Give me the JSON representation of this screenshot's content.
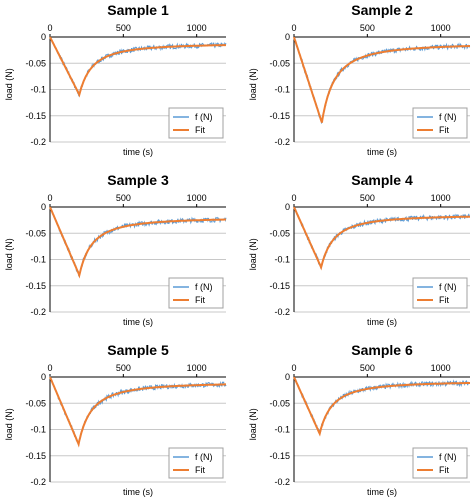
{
  "colors": {
    "measured": "#5b9bd5",
    "fit": "#ed7d31",
    "grid": "#c8c8c8",
    "axis": "#000000",
    "legend_border": "#a0a0a0"
  },
  "chart_data": [
    {
      "type": "line",
      "title": "Sample 1",
      "xlabel": "time (s)",
      "ylabel": "load (N)",
      "xlim": [
        0,
        1200
      ],
      "ylim": [
        -0.2,
        0
      ],
      "xticks": [
        "0",
        "500",
        "1000"
      ],
      "yticks": [
        "0",
        "-0.05",
        "-0.1",
        "-0.15",
        "-0.2"
      ],
      "grid": "horizontal",
      "legend": "bottom-right",
      "peak": {
        "x": 200,
        "y": -0.11
      },
      "end": {
        "x": 1200,
        "y": -0.012
      },
      "series": [
        {
          "name": "f (N)",
          "x": [
            0,
            50,
            100,
            150,
            200,
            300,
            400,
            600,
            800,
            1000,
            1200
          ],
          "y": [
            0,
            -0.03,
            -0.055,
            -0.08,
            -0.11,
            -0.055,
            -0.037,
            -0.025,
            -0.018,
            -0.014,
            -0.012
          ]
        },
        {
          "name": "Fit",
          "x": [
            0,
            50,
            100,
            150,
            200,
            300,
            400,
            600,
            800,
            1000,
            1200
          ],
          "y": [
            0,
            -0.028,
            -0.055,
            -0.083,
            -0.11,
            -0.055,
            -0.037,
            -0.025,
            -0.018,
            -0.014,
            -0.012
          ]
        }
      ]
    },
    {
      "type": "line",
      "title": "Sample 2",
      "xlabel": "time (s)",
      "ylabel": "load (N)",
      "xlim": [
        0,
        1200
      ],
      "ylim": [
        -0.2,
        0
      ],
      "xticks": [
        "0",
        "500",
        "1000"
      ],
      "yticks": [
        "0",
        "-0.05",
        "-0.1",
        "-0.15",
        "-0.2"
      ],
      "grid": "horizontal",
      "legend": "bottom-right",
      "peak": {
        "x": 190,
        "y": -0.163
      },
      "end": {
        "x": 1200,
        "y": -0.012
      },
      "series": [
        {
          "name": "f (N)",
          "x": [
            0,
            50,
            100,
            150,
            190,
            300,
            400,
            600,
            800,
            1000,
            1200
          ],
          "y": [
            0,
            -0.04,
            -0.08,
            -0.12,
            -0.163,
            -0.07,
            -0.045,
            -0.028,
            -0.02,
            -0.015,
            -0.012
          ]
        },
        {
          "name": "Fit",
          "x": [
            0,
            50,
            100,
            150,
            190,
            300,
            400,
            600,
            800,
            1000,
            1200
          ],
          "y": [
            0,
            -0.043,
            -0.086,
            -0.129,
            -0.163,
            -0.07,
            -0.045,
            -0.028,
            -0.02,
            -0.015,
            -0.012
          ]
        }
      ]
    },
    {
      "type": "line",
      "title": "Sample 3",
      "xlabel": "time (s)",
      "ylabel": "load (N)",
      "xlim": [
        0,
        1200
      ],
      "ylim": [
        -0.2,
        0
      ],
      "xticks": [
        "0",
        "500",
        "1000"
      ],
      "yticks": [
        "0",
        "-0.05",
        "-0.1",
        "-0.15",
        "-0.2"
      ],
      "grid": "horizontal",
      "legend": "bottom-right",
      "peak": {
        "x": 200,
        "y": -0.13
      },
      "end": {
        "x": 1200,
        "y": -0.02
      },
      "series": [
        {
          "name": "f (N)",
          "x": [
            0,
            50,
            100,
            150,
            200,
            300,
            400,
            600,
            800,
            1000,
            1200
          ],
          "y": [
            0,
            -0.035,
            -0.07,
            -0.1,
            -0.13,
            -0.065,
            -0.045,
            -0.033,
            -0.027,
            -0.023,
            -0.02
          ]
        },
        {
          "name": "Fit",
          "x": [
            0,
            50,
            100,
            150,
            200,
            300,
            400,
            600,
            800,
            1000,
            1200
          ],
          "y": [
            0,
            -0.033,
            -0.065,
            -0.098,
            -0.13,
            -0.065,
            -0.045,
            -0.033,
            -0.027,
            -0.023,
            -0.02
          ]
        }
      ]
    },
    {
      "type": "line",
      "title": "Sample 4",
      "xlabel": "time (s)",
      "ylabel": "load (N)",
      "xlim": [
        0,
        1200
      ],
      "ylim": [
        -0.2,
        0
      ],
      "xticks": [
        "0",
        "500",
        "1000"
      ],
      "yticks": [
        "0",
        "-0.05",
        "-0.1",
        "-0.15",
        "-0.2"
      ],
      "grid": "horizontal",
      "legend": "bottom-right",
      "peak": {
        "x": 185,
        "y": -0.115
      },
      "end": {
        "x": 1200,
        "y": -0.015
      },
      "series": [
        {
          "name": "f (N)",
          "x": [
            0,
            50,
            100,
            150,
            185,
            300,
            400,
            600,
            800,
            1000,
            1200
          ],
          "y": [
            0,
            -0.03,
            -0.06,
            -0.09,
            -0.115,
            -0.058,
            -0.042,
            -0.028,
            -0.021,
            -0.017,
            -0.015
          ]
        },
        {
          "name": "Fit",
          "x": [
            0,
            50,
            100,
            150,
            185,
            300,
            400,
            600,
            800,
            1000,
            1200
          ],
          "y": [
            0,
            -0.031,
            -0.062,
            -0.093,
            -0.115,
            -0.058,
            -0.042,
            -0.028,
            -0.021,
            -0.017,
            -0.015
          ]
        }
      ]
    },
    {
      "type": "line",
      "title": "Sample 5",
      "xlabel": "time (s)",
      "ylabel": "load (N)",
      "xlim": [
        0,
        1200
      ],
      "ylim": [
        -0.2,
        0
      ],
      "xticks": [
        "0",
        "500",
        "1000"
      ],
      "yticks": [
        "0",
        "-0.05",
        "-0.1",
        "-0.15",
        "-0.2"
      ],
      "grid": "horizontal",
      "legend": "bottom-right",
      "peak": {
        "x": 195,
        "y": -0.128
      },
      "end": {
        "x": 1200,
        "y": -0.01
      },
      "series": [
        {
          "name": "f (N)",
          "x": [
            0,
            50,
            100,
            150,
            195,
            300,
            400,
            600,
            800,
            1000,
            1200
          ],
          "y": [
            0,
            -0.035,
            -0.068,
            -0.1,
            -0.128,
            -0.06,
            -0.04,
            -0.025,
            -0.017,
            -0.013,
            -0.01
          ]
        },
        {
          "name": "Fit",
          "x": [
            0,
            50,
            100,
            150,
            195,
            300,
            400,
            600,
            800,
            1000,
            1200
          ],
          "y": [
            0,
            -0.033,
            -0.066,
            -0.098,
            -0.128,
            -0.06,
            -0.04,
            -0.025,
            -0.017,
            -0.013,
            -0.01
          ]
        }
      ]
    },
    {
      "type": "line",
      "title": "Sample 6",
      "xlabel": "time (s)",
      "ylabel": "load (N)",
      "xlim": [
        0,
        1200
      ],
      "ylim": [
        -0.2,
        0
      ],
      "xticks": [
        "0",
        "500",
        "1000"
      ],
      "yticks": [
        "0",
        "-0.05",
        "-0.1",
        "-0.15",
        "-0.2"
      ],
      "grid": "horizontal",
      "legend": "bottom-right",
      "peak": {
        "x": 175,
        "y": -0.108
      },
      "end": {
        "x": 1200,
        "y": -0.008
      },
      "series": [
        {
          "name": "f (N)",
          "x": [
            0,
            50,
            100,
            150,
            175,
            300,
            400,
            600,
            800,
            1000,
            1200
          ],
          "y": [
            0,
            -0.032,
            -0.062,
            -0.092,
            -0.108,
            -0.048,
            -0.032,
            -0.02,
            -0.014,
            -0.01,
            -0.008
          ]
        },
        {
          "name": "Fit",
          "x": [
            0,
            50,
            100,
            150,
            175,
            300,
            400,
            600,
            800,
            1000,
            1200
          ],
          "y": [
            0,
            -0.031,
            -0.062,
            -0.093,
            -0.108,
            -0.048,
            -0.032,
            -0.02,
            -0.014,
            -0.01,
            -0.008
          ]
        }
      ]
    }
  ]
}
